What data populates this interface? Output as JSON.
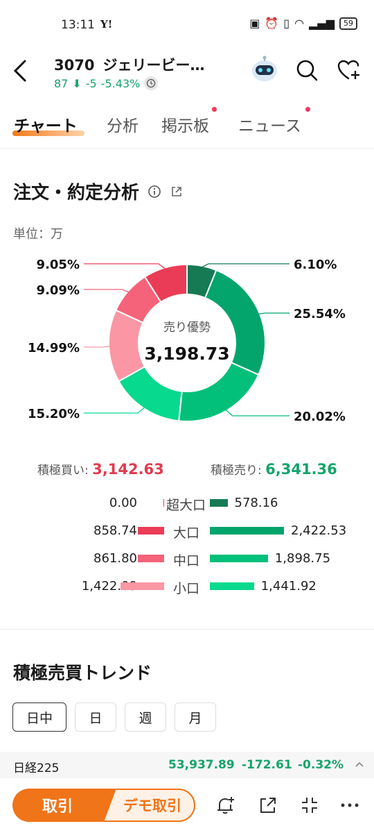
{
  "status": {
    "time": "13:11",
    "app": "Y!",
    "battery": "59"
  },
  "header": {
    "code": "3070",
    "name": "ジェリービー…",
    "price": "87",
    "change": "-5",
    "change_pct": "-5.43%"
  },
  "tabs": [
    {
      "label": "チャート"
    },
    {
      "label": "分析"
    },
    {
      "label": "掲示板"
    },
    {
      "label": "ニュース"
    }
  ],
  "section": {
    "title": "注文・約定分析",
    "unit": "単位：万"
  },
  "donut": {
    "center_label": "売り優勢",
    "center_value": "3,198.73"
  },
  "chart_data": {
    "type": "pie",
    "slices": [
      {
        "label": "超大口売り",
        "value": 6.1,
        "text": "6.10%",
        "color": "#167a55"
      },
      {
        "label": "大口売り",
        "value": 25.54,
        "text": "25.54%",
        "color": "#03a56c"
      },
      {
        "label": "中口売り",
        "value": 20.02,
        "text": "20.02%",
        "color": "#02c07a"
      },
      {
        "label": "小口売り",
        "value": 15.2,
        "text": "15.20%",
        "color": "#07d98e"
      },
      {
        "label": "小口買い",
        "value": 14.99,
        "text": "14.99%",
        "color": "#fb97a5"
      },
      {
        "label": "中口買い",
        "value": 9.09,
        "text": "9.09%",
        "color": "#f5637a"
      },
      {
        "label": "大口買い",
        "value": 9.05,
        "text": "9.05%",
        "color": "#ea3c56"
      }
    ]
  },
  "totals": {
    "buy_label": "積極買い:",
    "buy_value": "3,142.63",
    "sell_label": "積極売り:",
    "sell_value": "6,341.36"
  },
  "breakdown": [
    {
      "label": "超大口",
      "buy": "0.00",
      "buy_num": 0.0,
      "sell": "578.16",
      "sell_num": 578.16,
      "buy_color": "#ea3c56",
      "sell_color": "#167a55"
    },
    {
      "label": "大口",
      "buy": "858.74",
      "buy_num": 858.74,
      "sell": "2,422.53",
      "sell_num": 2422.53,
      "buy_color": "#ea3c56",
      "sell_color": "#03a56c"
    },
    {
      "label": "中口",
      "buy": "861.80",
      "buy_num": 861.8,
      "sell": "1,898.75",
      "sell_num": 1898.75,
      "buy_color": "#f5637a",
      "sell_color": "#02c07a"
    },
    {
      "label": "小口",
      "buy": "1,422.09",
      "buy_num": 1422.09,
      "sell": "1,441.92",
      "sell_num": 1441.92,
      "buy_color": "#fb97a5",
      "sell_color": "#07d98e"
    }
  ],
  "trend": {
    "title": "積極売買トレンド",
    "periods": [
      "日中",
      "日",
      "週",
      "月"
    ]
  },
  "ticker": {
    "name": "日経225",
    "value": "53,937.89",
    "change": "-172.61",
    "pct": "-0.32%"
  },
  "bottom": {
    "trade": "取引",
    "demo": "デモ取引"
  },
  "colors": {
    "accent": "#f07418",
    "down_green": "#15a46b",
    "up_red": "#e23a4e"
  }
}
